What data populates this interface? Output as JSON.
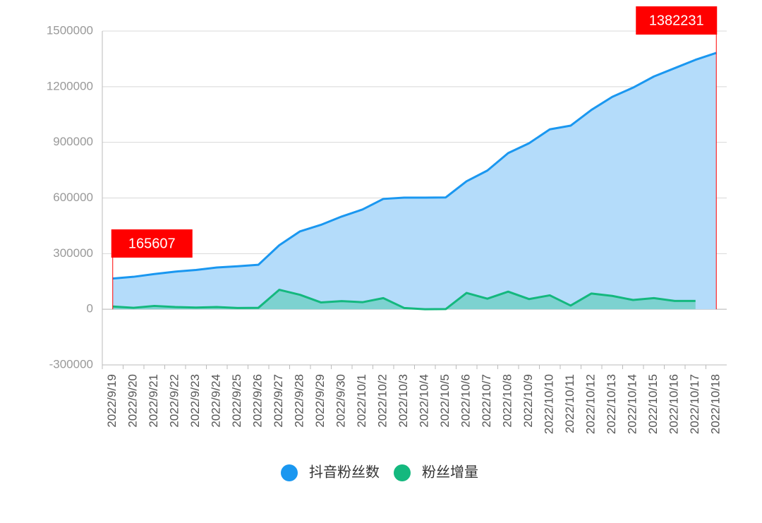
{
  "chart_data": {
    "type": "area",
    "categories": [
      "2022/9/19",
      "2022/9/20",
      "2022/9/21",
      "2022/9/22",
      "2022/9/23",
      "2022/9/24",
      "2022/9/25",
      "2022/9/26",
      "2022/9/27",
      "2022/9/28",
      "2022/9/29",
      "2022/9/30",
      "2022/10/1",
      "2022/10/2",
      "2022/10/3",
      "2022/10/4",
      "2022/10/5",
      "2022/10/6",
      "2022/10/7",
      "2022/10/8",
      "2022/10/9",
      "2022/10/10",
      "2022/10/11",
      "2022/10/12",
      "2022/10/13",
      "2022/10/14",
      "2022/10/15",
      "2022/10/16",
      "2022/10/17",
      "2022/10/18"
    ],
    "series": [
      {
        "name": "抖音粉丝数",
        "color": "#1a97f0",
        "fill": "#b4dcfa",
        "values": [
          165607,
          175000,
          190000,
          203000,
          212000,
          225000,
          232000,
          240000,
          345000,
          420000,
          455000,
          500000,
          538000,
          595000,
          602000,
          602000,
          603000,
          690000,
          748000,
          842000,
          895000,
          970000,
          990000,
          1075000,
          1145000,
          1195000,
          1255000,
          1300000,
          1345000,
          1382231
        ]
      },
      {
        "name": "粉丝增量",
        "color": "#14b87e",
        "fill": "#6fcfc6",
        "values": [
          15000,
          8000,
          18000,
          12000,
          9000,
          12000,
          7000,
          8000,
          105000,
          78000,
          37000,
          44000,
          38000,
          60000,
          7000,
          0,
          1000,
          88000,
          57000,
          95000,
          55000,
          75000,
          20000,
          85000,
          72000,
          50000,
          60000,
          45000,
          45000,
          null
        ]
      }
    ],
    "ylim": [
      -300000,
      1500000
    ],
    "yticks": [
      -300000,
      0,
      300000,
      600000,
      900000,
      1200000,
      1500000
    ],
    "grid": true,
    "legend": "bottom",
    "marker_color": "#ff0000"
  }
}
